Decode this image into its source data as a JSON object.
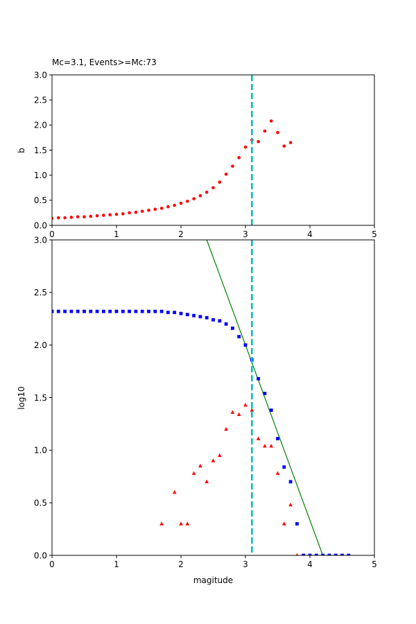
{
  "chart_data": [
    {
      "type": "scatter",
      "title": "Mc=3.1, Events>=Mc:73",
      "xlabel": "",
      "ylabel": "b",
      "xlim": [
        0,
        5
      ],
      "ylim": [
        0,
        3
      ],
      "xticks": [
        "0",
        "1",
        "2",
        "3",
        "4",
        "5"
      ],
      "yticks": [
        "0.0",
        "0.5",
        "1.0",
        "1.5",
        "2.0",
        "2.5",
        "3.0"
      ],
      "grid": false,
      "vline": {
        "x": 3.1,
        "color": "#00bfbf",
        "style": "dashed"
      },
      "series": [
        {
          "marker": "circle",
          "color": "#ff0000",
          "x": [
            0.0,
            0.1,
            0.2,
            0.3,
            0.4,
            0.5,
            0.6,
            0.7,
            0.8,
            0.9,
            1.0,
            1.1,
            1.2,
            1.3,
            1.4,
            1.5,
            1.6,
            1.7,
            1.8,
            1.9,
            2.0,
            2.1,
            2.2,
            2.3,
            2.4,
            2.5,
            2.6,
            2.7,
            2.8,
            2.9,
            3.0,
            3.1,
            3.2,
            3.3,
            3.4,
            3.5,
            3.6,
            3.7
          ],
          "y": [
            0.14,
            0.15,
            0.15,
            0.16,
            0.17,
            0.17,
            0.18,
            0.19,
            0.2,
            0.21,
            0.22,
            0.23,
            0.25,
            0.26,
            0.28,
            0.3,
            0.32,
            0.34,
            0.37,
            0.4,
            0.44,
            0.48,
            0.53,
            0.59,
            0.66,
            0.75,
            0.86,
            1.02,
            1.18,
            1.35,
            1.56,
            1.7,
            1.67,
            1.88,
            2.08,
            1.85,
            1.58,
            1.65
          ]
        }
      ]
    },
    {
      "type": "scatter",
      "title": "",
      "xlabel": "magitude",
      "ylabel": "log10",
      "xlim": [
        0,
        5
      ],
      "ylim": [
        0,
        3
      ],
      "xticks": [
        "0",
        "1",
        "2",
        "3",
        "4",
        "5"
      ],
      "yticks": [
        "0.0",
        "0.5",
        "1.0",
        "1.5",
        "2.0",
        "2.5",
        "3.0"
      ],
      "grid": false,
      "vline": {
        "x": 3.1,
        "color": "#00bfbf",
        "style": "dashed"
      },
      "fit_line": {
        "color": "#008000",
        "x": [
          2.4,
          4.2
        ],
        "y": [
          3.0,
          0.0
        ]
      },
      "series": [
        {
          "marker": "square",
          "color": "#0000ff",
          "x": [
            0.0,
            0.1,
            0.2,
            0.3,
            0.4,
            0.5,
            0.6,
            0.7,
            0.8,
            0.9,
            1.0,
            1.1,
            1.2,
            1.3,
            1.4,
            1.5,
            1.6,
            1.7,
            1.8,
            1.9,
            2.0,
            2.1,
            2.2,
            2.3,
            2.4,
            2.5,
            2.6,
            2.7,
            2.8,
            2.9,
            3.0,
            3.1,
            3.2,
            3.3,
            3.4,
            3.5,
            3.6,
            3.7,
            3.8,
            3.9,
            4.0,
            4.1,
            4.2,
            4.3,
            4.4,
            4.5,
            4.6
          ],
          "y": [
            2.32,
            2.32,
            2.32,
            2.32,
            2.32,
            2.32,
            2.32,
            2.32,
            2.32,
            2.32,
            2.32,
            2.32,
            2.32,
            2.32,
            2.32,
            2.32,
            2.32,
            2.32,
            2.31,
            2.31,
            2.3,
            2.29,
            2.28,
            2.27,
            2.26,
            2.24,
            2.23,
            2.2,
            2.16,
            2.08,
            2.0,
            1.86,
            1.68,
            1.54,
            1.38,
            1.11,
            0.84,
            0.7,
            0.3,
            0.0,
            0.0,
            0.0,
            0.0,
            0.0,
            0.0,
            0.0,
            0.0
          ]
        },
        {
          "marker": "triangle",
          "color": "#ff0000",
          "x": [
            1.7,
            1.9,
            2.0,
            2.1,
            2.2,
            2.3,
            2.4,
            2.5,
            2.6,
            2.7,
            2.8,
            2.9,
            3.0,
            3.1,
            3.2,
            3.3,
            3.4,
            3.5,
            3.6,
            3.7,
            3.8
          ],
          "y": [
            0.3,
            0.6,
            0.3,
            0.3,
            0.78,
            0.85,
            0.7,
            0.9,
            0.95,
            1.2,
            1.36,
            1.34,
            1.43,
            1.38,
            1.11,
            1.04,
            1.04,
            0.78,
            0.3,
            0.48,
            0.0
          ]
        }
      ]
    }
  ]
}
